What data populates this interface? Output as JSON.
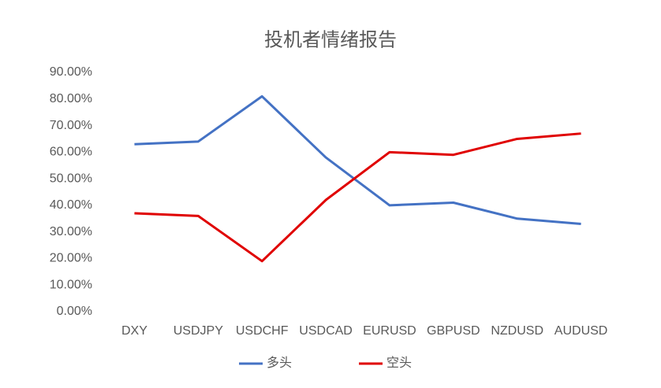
{
  "chart_data": {
    "type": "line",
    "title": "投机者情绪报告",
    "categories": [
      "DXY",
      "USDJPY",
      "USDCHF",
      "USDCAD",
      "EURUSD",
      "GBPUSD",
      "NZDUSD",
      "AUDUSD"
    ],
    "series": [
      {
        "name": "多头",
        "color": "#4472c4",
        "values": [
          63,
          64,
          81,
          58,
          40,
          41,
          35,
          33
        ]
      },
      {
        "name": "空头",
        "color": "#e00000",
        "values": [
          37,
          36,
          19,
          42,
          60,
          59,
          65,
          67
        ]
      }
    ],
    "ylim": [
      0,
      90
    ],
    "yticks": [
      {
        "value": 0,
        "label": "0.00%"
      },
      {
        "value": 10,
        "label": "10.00%"
      },
      {
        "value": 20,
        "label": "20.00%"
      },
      {
        "value": 30,
        "label": "30.00%"
      },
      {
        "value": 40,
        "label": "40.00%"
      },
      {
        "value": 50,
        "label": "50.00%"
      },
      {
        "value": 60,
        "label": "60.00%"
      },
      {
        "value": 70,
        "label": "70.00%"
      },
      {
        "value": 80,
        "label": "80.00%"
      },
      {
        "value": 90,
        "label": "90.00%"
      }
    ],
    "grid": false,
    "legend": "bottom"
  }
}
